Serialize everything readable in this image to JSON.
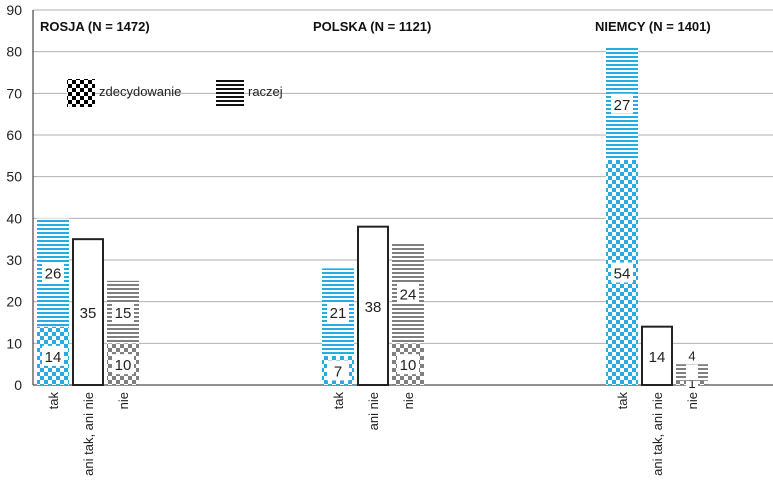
{
  "chart_data": {
    "type": "bar",
    "stacked": true,
    "ylim": [
      0,
      90
    ],
    "yticks": [
      0,
      10,
      20,
      30,
      40,
      50,
      60,
      70,
      80,
      90
    ],
    "grid": true,
    "legend": {
      "placement": "top-left",
      "entries": [
        {
          "name": "zdecydowanie",
          "pattern": "checker"
        },
        {
          "name": "raczej",
          "pattern": "stripes"
        }
      ]
    },
    "colors": {
      "tak": "#29abe2",
      "nie": "#7f7f7f",
      "neutral_border": "#222222",
      "grid": "#b0b0b0"
    },
    "groups": [
      {
        "title": "ROSJA  (N = 1472)",
        "bars": [
          {
            "category": "tak",
            "color": "tak",
            "segments": [
              {
                "series": "zdecydowanie",
                "value": 14
              },
              {
                "series": "raczej",
                "value": 26
              }
            ]
          },
          {
            "category": "ani tak, ani nie",
            "color": "neutral",
            "segments": [
              {
                "series": "ani tak, ani nie",
                "value": 35
              }
            ]
          },
          {
            "category": "nie",
            "color": "nie",
            "segments": [
              {
                "series": "zdecydowanie",
                "value": 10
              },
              {
                "series": "raczej",
                "value": 15
              }
            ]
          }
        ]
      },
      {
        "title": "POLSKA (N = 1121)",
        "bars": [
          {
            "category": "tak",
            "color": "tak",
            "segments": [
              {
                "series": "zdecydowanie",
                "value": 7
              },
              {
                "series": "raczej",
                "value": 21
              }
            ]
          },
          {
            "category": "ani nie",
            "color": "neutral",
            "segments": [
              {
                "series": "ani tak, ani nie",
                "value": 38
              }
            ]
          },
          {
            "category": "nie",
            "color": "nie",
            "segments": [
              {
                "series": "zdecydowanie",
                "value": 10
              },
              {
                "series": "raczej",
                "value": 24
              }
            ]
          }
        ]
      },
      {
        "title": "NIEMCY (N = 1401)",
        "bars": [
          {
            "category": "tak",
            "color": "tak",
            "segments": [
              {
                "series": "zdecydowanie",
                "value": 54
              },
              {
                "series": "raczej",
                "value": 27
              }
            ]
          },
          {
            "category": "ani tak, ani nie",
            "color": "neutral",
            "segments": [
              {
                "series": "ani tak, ani nie",
                "value": 14
              }
            ]
          },
          {
            "category": "nie",
            "color": "nie",
            "segments": [
              {
                "series": "zdecydowanie",
                "value": 1
              },
              {
                "series": "raczej",
                "value": 4
              }
            ]
          }
        ]
      }
    ]
  }
}
